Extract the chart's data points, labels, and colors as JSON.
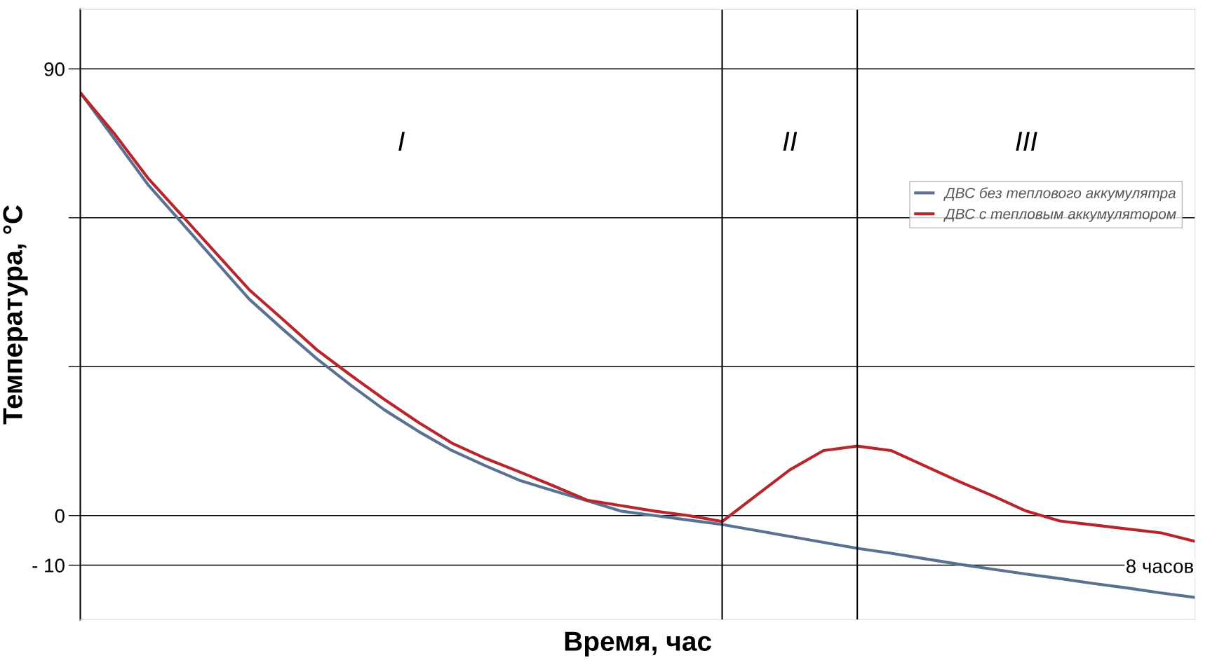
{
  "chart_data": {
    "type": "line",
    "xlabel": "Время, час",
    "ylabel": "Температура, °С",
    "categories": [
      null,
      null,
      null,
      null,
      null,
      null,
      null,
      null,
      null,
      null,
      null,
      null,
      null,
      null,
      null,
      null,
      null,
      null,
      null,
      null,
      null,
      null,
      null,
      null,
      null,
      null,
      null,
      null,
      null,
      null,
      null,
      null,
      null,
      null
    ],
    "ylim": [
      -21,
      102
    ],
    "yticks": [
      {
        "value": 90,
        "label": "90"
      },
      {
        "value": 60,
        "label": null
      },
      {
        "value": 30,
        "label": null
      },
      {
        "value": 0,
        "label": "0"
      },
      {
        "value": -10,
        "label": "- 10"
      }
    ],
    "grid": "y",
    "legend": "right",
    "series": [
      {
        "name": "ДВС без теплового аккумулятра",
        "color": "#5b7193",
        "values": [
          85.2,
          76,
          66.7,
          59,
          51.3,
          43.6,
          37.5,
          31.6,
          26.3,
          21.3,
          17,
          13.1,
          10,
          7.1,
          5,
          3,
          0.9,
          0,
          -0.9,
          -1.8,
          -3,
          -4.2,
          -5.4,
          -6.6,
          -7.6,
          -8.7,
          -9.8,
          -10.8,
          -11.8,
          -12.7,
          -13.7,
          -14.6,
          -15.6,
          -16.5
        ]
      },
      {
        "name": "ДВС с тепловым аккумулятором",
        "color": "#b8262c",
        "values": [
          85.2,
          77,
          68,
          60.5,
          53,
          45.5,
          39.5,
          33.4,
          28.3,
          23.4,
          18.8,
          14.6,
          11.5,
          8.8,
          6,
          3.1,
          2,
          0.9,
          0,
          -1.2,
          4,
          9.2,
          13.1,
          14,
          13.1,
          10,
          6.9,
          4,
          0.9,
          -1.1,
          -1.9,
          -2.7,
          -3.5,
          -5.2
        ]
      }
    ],
    "annotations": [
      "I",
      "II",
      "III",
      "8 часов"
    ]
  }
}
